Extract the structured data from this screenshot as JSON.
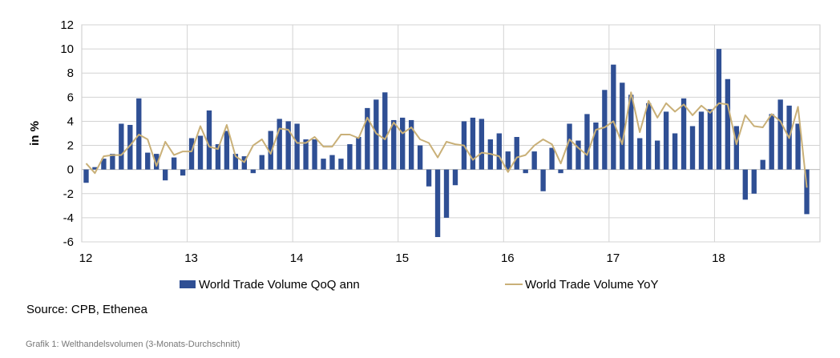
{
  "chart_data": {
    "type": "bar+line",
    "title": "",
    "xlabel": "",
    "ylabel": "in %",
    "ylim": [
      -6,
      12
    ],
    "yticks": [
      -6,
      -4,
      -2,
      0,
      2,
      4,
      6,
      8,
      10,
      12
    ],
    "xlim": [
      12,
      19
    ],
    "xticks": [
      12,
      13,
      14,
      15,
      16,
      17,
      18
    ],
    "x_tick_labels": [
      "12",
      "13",
      "14",
      "15",
      "16",
      "17",
      "18"
    ],
    "grid": true,
    "legend": "bottom",
    "series": [
      {
        "name": "World Trade Volume QoQ ann",
        "kind": "bar",
        "color": "#2f4f94",
        "start_year": 12,
        "points_per_year": 12,
        "values": [
          -1.1,
          0.2,
          0.9,
          1.3,
          3.8,
          3.7,
          5.9,
          1.4,
          1.3,
          -0.9,
          1.0,
          -0.5,
          2.6,
          2.8,
          4.9,
          2.1,
          3.2,
          1.3,
          1.1,
          -0.3,
          1.2,
          3.2,
          4.2,
          4.0,
          3.8,
          2.5,
          2.5,
          0.9,
          1.2,
          0.9,
          2.1,
          2.7,
          5.1,
          5.8,
          6.4,
          4.1,
          4.3,
          4.1,
          2.0,
          -1.4,
          -5.6,
          -4.0,
          -1.3,
          4.0,
          4.3,
          4.2,
          2.5,
          3.0,
          1.5,
          2.7,
          -0.3,
          1.5,
          -1.8,
          1.8,
          -0.3,
          3.8,
          2.4,
          4.6,
          3.9,
          6.6,
          8.7,
          7.2,
          6.2,
          2.6,
          5.5,
          2.4,
          4.8,
          3.0,
          5.9,
          3.6,
          4.8,
          5.0,
          10.0,
          7.5,
          3.6,
          -2.5,
          -2.0,
          0.8,
          4.6,
          5.8,
          5.3,
          3.8,
          -3.7
        ]
      },
      {
        "name": "World Trade Volume YoY",
        "kind": "line",
        "color": "#c9b078",
        "start_year": 12,
        "points_per_year": 12,
        "values": [
          0.5,
          -0.3,
          1.1,
          1.2,
          1.2,
          2.0,
          2.9,
          2.5,
          0.3,
          2.3,
          1.2,
          1.5,
          1.5,
          3.6,
          1.9,
          1.7,
          3.7,
          1.1,
          0.6,
          2.0,
          2.5,
          1.3,
          3.4,
          3.3,
          2.2,
          2.2,
          2.7,
          1.9,
          1.9,
          2.9,
          2.9,
          2.6,
          4.3,
          3.0,
          2.5,
          3.9,
          3.0,
          3.5,
          2.5,
          2.2,
          1.0,
          2.3,
          2.1,
          2.0,
          0.8,
          1.4,
          1.3,
          1.1,
          -0.2,
          1.0,
          1.2,
          2.0,
          2.5,
          2.1,
          0.5,
          2.5,
          1.8,
          1.2,
          3.3,
          3.5,
          4.0,
          2.1,
          6.4,
          3.1,
          5.7,
          4.3,
          5.5,
          4.8,
          5.4,
          4.5,
          5.3,
          4.7,
          5.5,
          5.4,
          2.1,
          4.5,
          3.6,
          3.5,
          4.6,
          4.0,
          2.6,
          5.2,
          -1.5
        ]
      }
    ]
  },
  "source_text": "Source: CPB, Ethenea",
  "caption": "Grafik 1: Welthandelsvolumen (3-Monats-Durchschnitt)"
}
